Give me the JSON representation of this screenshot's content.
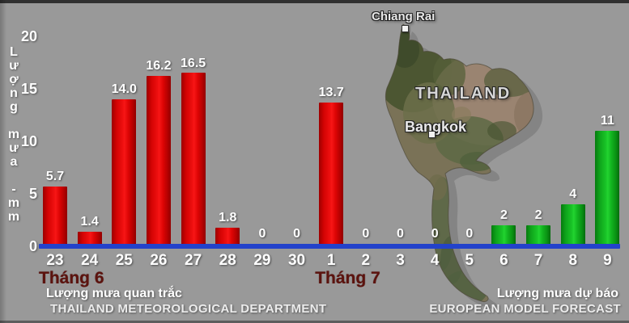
{
  "window": {
    "background_color": "#999999"
  },
  "y_axis": {
    "title": "Lượng mưa - mm",
    "title_letters": [
      "L",
      "ư",
      "ợ",
      "n",
      "g",
      " ",
      "m",
      "ư",
      "a",
      " ",
      "-",
      "m",
      "m"
    ],
    "tick_labels": [
      "20",
      "15",
      "10",
      "5",
      "0"
    ]
  },
  "chart_data": {
    "type": "bar",
    "title": "",
    "ylabel": "Lượng mưa - mm",
    "ylim": [
      0,
      20
    ],
    "yticks": [
      0,
      5,
      10,
      15,
      20
    ],
    "grid": false,
    "axis_line_color": "#2342cb",
    "categories": [
      "23",
      "24",
      "25",
      "26",
      "27",
      "28",
      "29",
      "30",
      "1",
      "2",
      "3",
      "4",
      "5",
      "6",
      "7",
      "8",
      "9"
    ],
    "values": [
      5.7,
      1.4,
      14.0,
      16.2,
      16.5,
      1.8,
      0,
      0,
      13.7,
      0,
      0,
      0,
      0,
      2,
      2,
      4,
      11
    ],
    "display_values": [
      "5.7",
      "1.4",
      "14.0",
      "16.2",
      "16.5",
      "1.8",
      "0",
      "0",
      "13.7",
      "0",
      "0",
      "0",
      "0",
      "2",
      "2",
      "4",
      "11"
    ],
    "bar_colors": [
      "red",
      "red",
      "red",
      "red",
      "red",
      "red",
      "red",
      "red",
      "red",
      "red",
      "red",
      "red",
      "red",
      "green",
      "green",
      "green",
      "green"
    ],
    "series": [
      {
        "name": "Lượng mưa quan trắc — THAILAND METEOROLOGICAL DEPARTMENT",
        "color": "#d30303",
        "categories": [
          "23",
          "24",
          "25",
          "26",
          "27",
          "28",
          "29",
          "30",
          "1",
          "2",
          "3",
          "4",
          "5"
        ],
        "values": [
          5.7,
          1.4,
          14.0,
          16.2,
          16.5,
          1.8,
          0,
          0,
          13.7,
          0,
          0,
          0,
          0
        ]
      },
      {
        "name": "Lượng mưa dự báo — EUROPEAN MODEL FORECAST",
        "color": "#19c427",
        "categories": [
          "6",
          "7",
          "8",
          "9"
        ],
        "values": [
          2,
          2,
          4,
          11
        ]
      }
    ],
    "month_labels": [
      {
        "text": "Tháng 6",
        "at_category": "23"
      },
      {
        "text": "Tháng 7",
        "at_category": "1"
      }
    ]
  },
  "captions": {
    "left_vi": "Lượng mưa quan trắc",
    "left_en": "THAILAND METEOROLOGICAL DEPARTMENT",
    "right_vi": "Lượng mưa dự báo",
    "right_en": "EUROPEAN MODEL FORECAST"
  },
  "map": {
    "labels": {
      "chiang_rai": "Chiang Rai",
      "thailand": "THAILAND",
      "bangkok": "Bangkok"
    }
  }
}
